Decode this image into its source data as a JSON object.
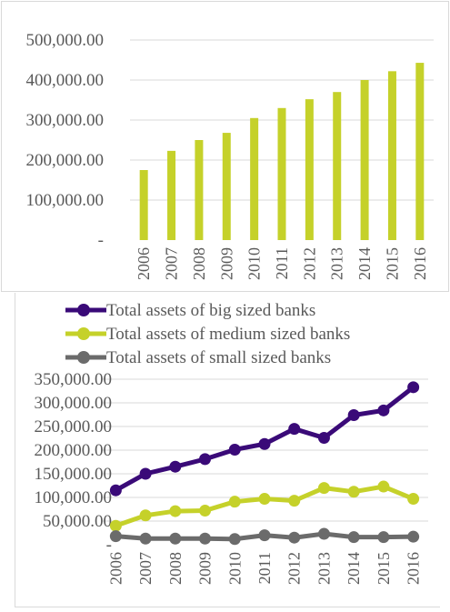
{
  "chart_data": [
    {
      "type": "bar",
      "categories": [
        "2006",
        "2007",
        "2008",
        "2009",
        "2010",
        "2011",
        "2012",
        "2013",
        "2014",
        "2015",
        "2016"
      ],
      "values": [
        175000,
        223000,
        250000,
        268000,
        305000,
        330000,
        352000,
        370000,
        400000,
        422000,
        443000
      ],
      "ylim": [
        0,
        500000
      ],
      "yticks": [
        "-",
        "100,000.00",
        "200,000.00",
        "300,000.00",
        "400,000.00",
        "500,000.00"
      ],
      "grid": true,
      "color": "#c5d12a"
    },
    {
      "type": "line",
      "categories": [
        "2006",
        "2007",
        "2008",
        "2009",
        "2010",
        "2011",
        "2012",
        "2013",
        "2014",
        "2015",
        "2016"
      ],
      "series": [
        {
          "name": "Total assets of big sized banks",
          "color": "#3a0a78",
          "values": [
            115000,
            150000,
            165000,
            181000,
            201000,
            213000,
            245000,
            226000,
            274000,
            284000,
            333000
          ]
        },
        {
          "name": "Total assets of medium sized banks",
          "color": "#c5d12a",
          "values": [
            40000,
            62000,
            71000,
            72000,
            91000,
            97000,
            93000,
            120000,
            112000,
            123000,
            97000
          ]
        },
        {
          "name": "Total assets of small sized banks",
          "color": "#6b6b6b",
          "values": [
            18000,
            13000,
            13000,
            13000,
            12000,
            20000,
            15000,
            23000,
            16000,
            16000,
            17000
          ]
        }
      ],
      "ylim": [
        0,
        350000
      ],
      "yticks": [
        "-",
        "50,000.00",
        "100,000.00",
        "150,000.00",
        "200,000.00",
        "250,000.00",
        "300,000.00",
        "350,000.00"
      ],
      "legend": "top",
      "grid": true
    }
  ]
}
